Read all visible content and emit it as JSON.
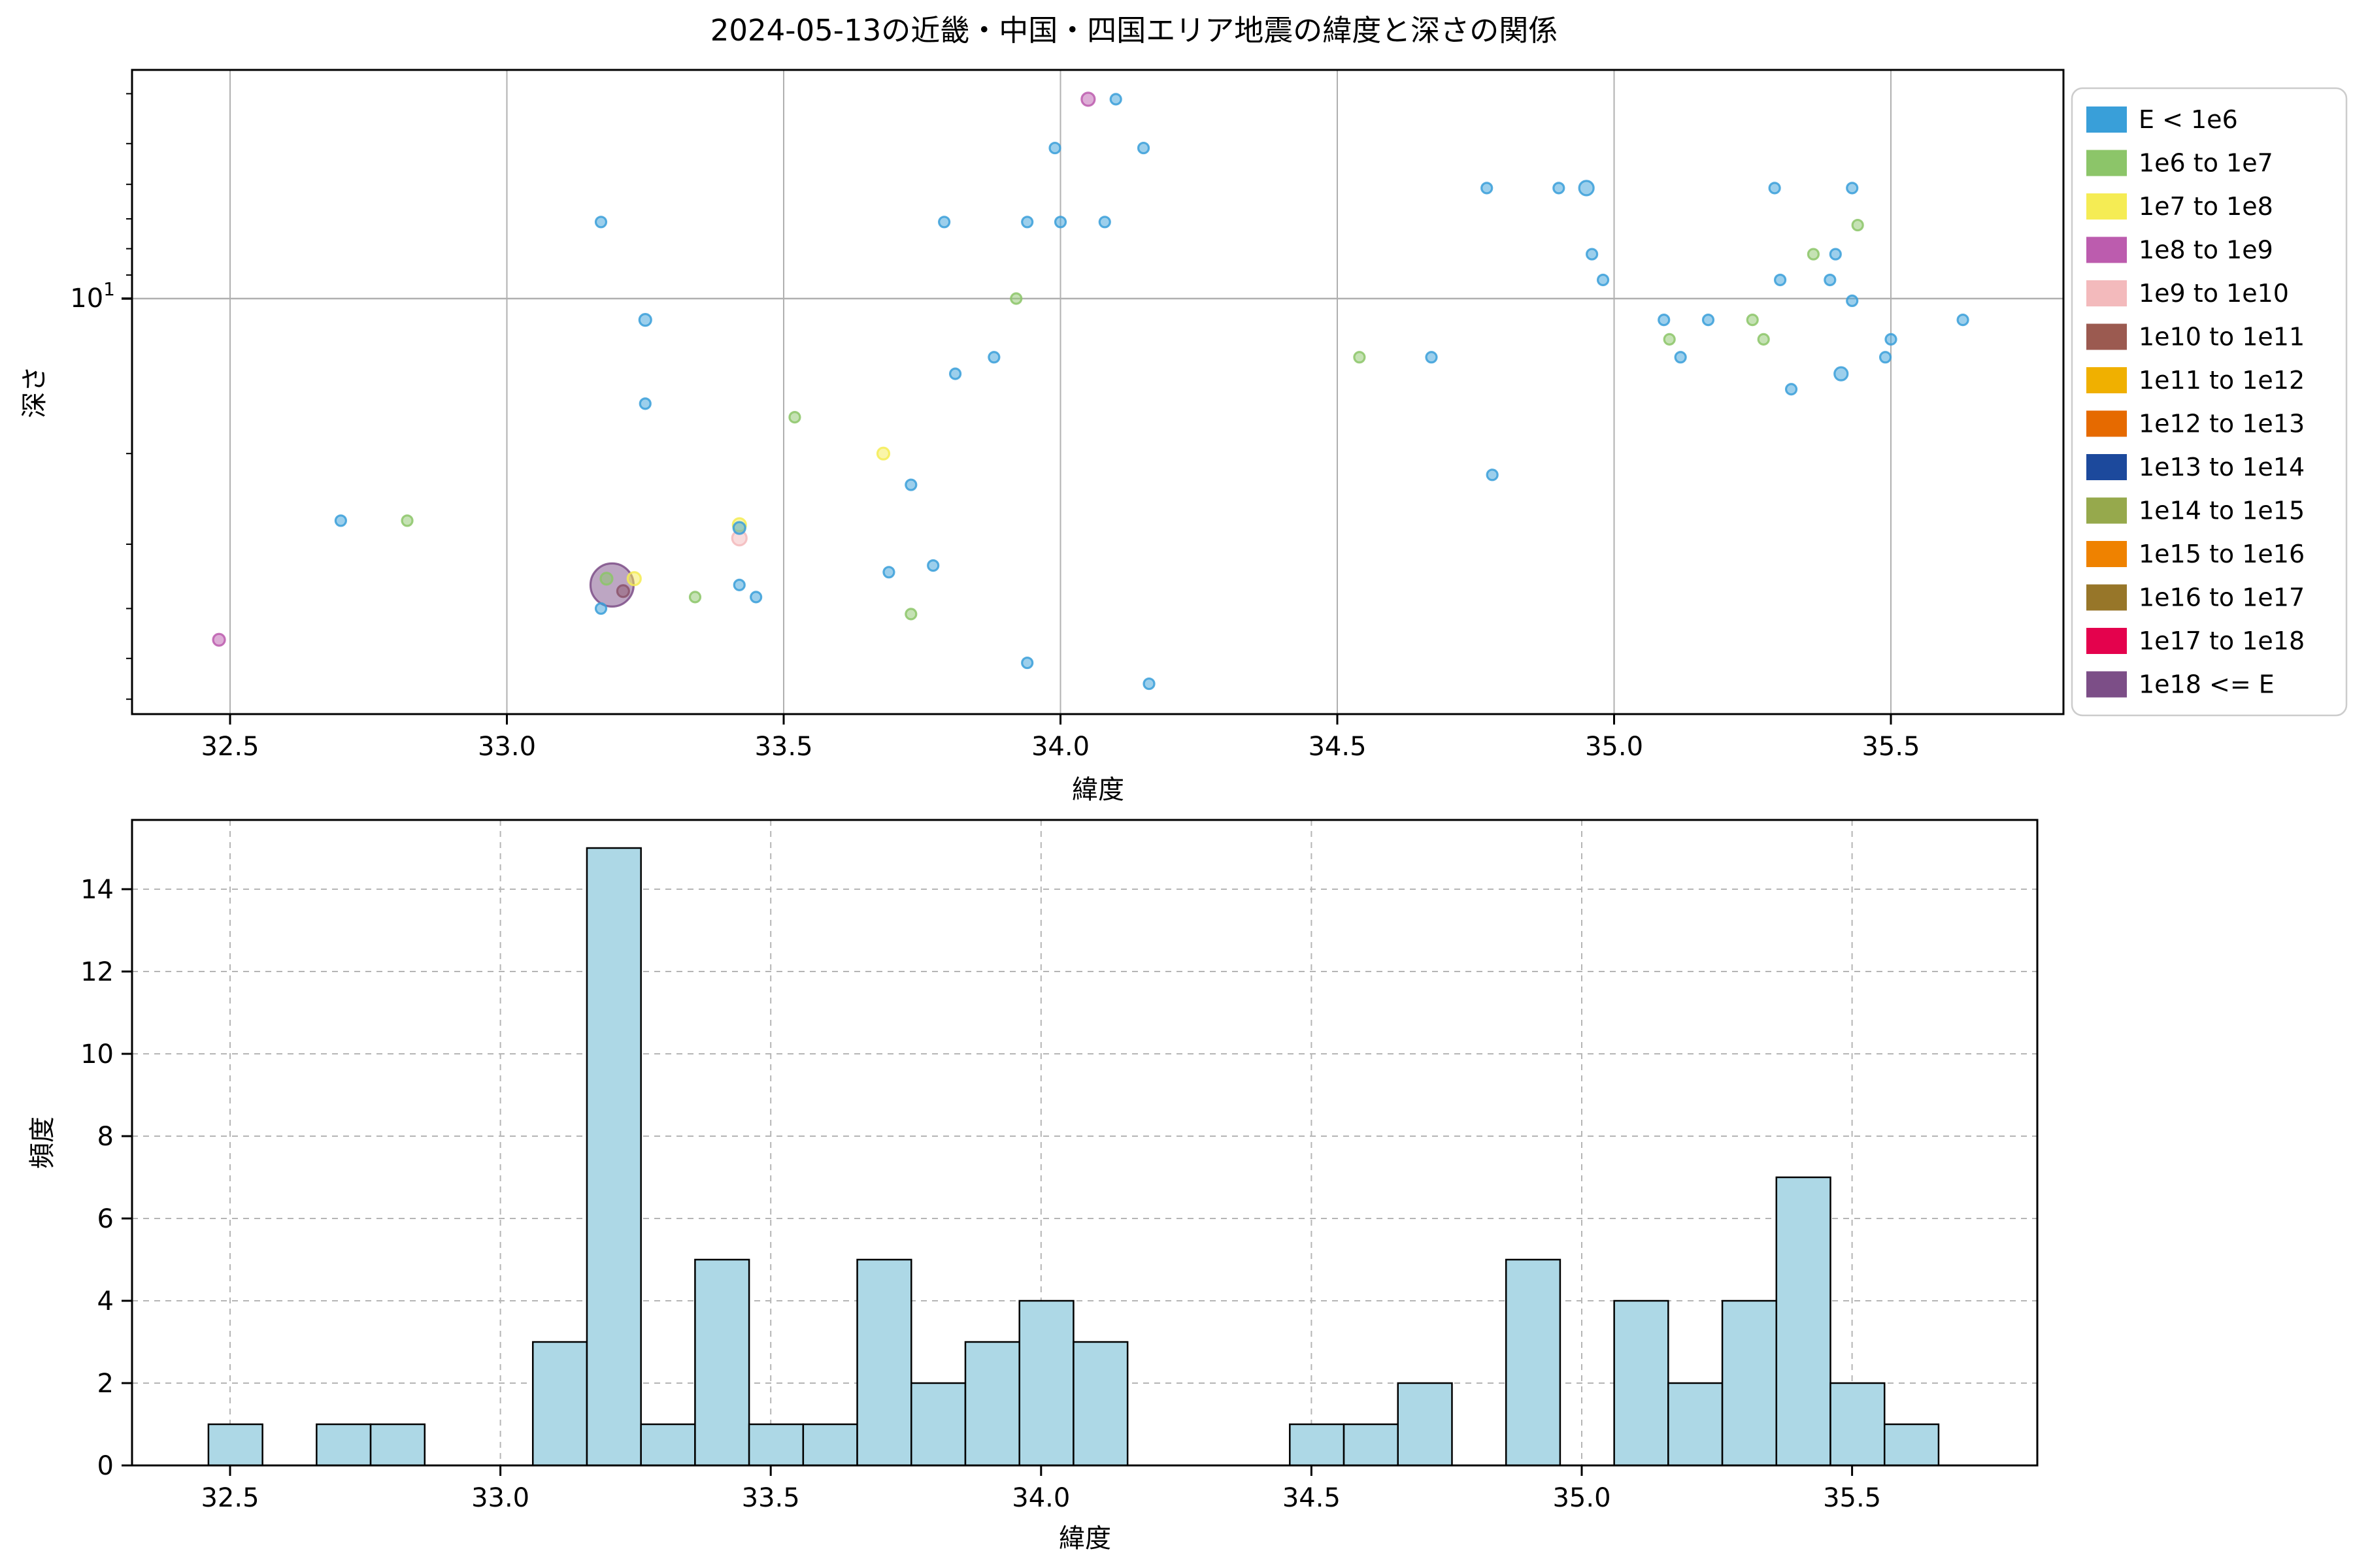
{
  "title": "2024-05-13の近畿・中国・四国エリア地震の緯度と深さの関係",
  "scatter": {
    "xlabel": "緯度",
    "ylabel": "深さ",
    "y_major_label": {
      "base": "10",
      "exp": "1"
    }
  },
  "histogram": {
    "xlabel": "緯度",
    "ylabel": "頻度"
  },
  "legend": {
    "items": [
      {
        "label": "E < 1e6",
        "color": "#399fd9"
      },
      {
        "label": "1e6 to 1e7",
        "color": "#8cc569"
      },
      {
        "label": "1e7 to 1e8",
        "color": "#f5ec54"
      },
      {
        "label": "1e8 to 1e9",
        "color": "#bc5cae"
      },
      {
        "label": "1e9 to 1e10",
        "color": "#f3babc"
      },
      {
        "label": "1e10 to 1e11",
        "color": "#9b5a50"
      },
      {
        "label": "1e11 to 1e12",
        "color": "#f0b000"
      },
      {
        "label": "1e12 to 1e13",
        "color": "#e66a00"
      },
      {
        "label": "1e13 to 1e14",
        "color": "#1c499c"
      },
      {
        "label": "1e14 to 1e15",
        "color": "#96a94c"
      },
      {
        "label": "1e15 to 1e16",
        "color": "#ef8200"
      },
      {
        "label": "1e16 to 1e17",
        "color": "#977629"
      },
      {
        "label": "1e17 to 1e18",
        "color": "#e4024d"
      },
      {
        "label": "1e18 <= E",
        "color": "#7c4e87"
      }
    ]
  },
  "chart_data": [
    {
      "type": "scatter",
      "title": "2024-05-13の近畿・中国・四国エリア地震の緯度と深さの関係",
      "xlabel": "緯度",
      "ylabel": "深さ",
      "xlim": [
        32.32,
        35.81
      ],
      "x_ticks": [
        32.5,
        33.0,
        33.5,
        34.0,
        34.5,
        35.0,
        35.5
      ],
      "y_scale": "log (inverted, depth increases downward)",
      "ylim_depth": [
        3.6,
        64
      ],
      "y_major_tick": 10,
      "y_minor_ticks": [
        4,
        5,
        6,
        7,
        8,
        9,
        20,
        30,
        40,
        50,
        60
      ],
      "grid": "solid gray at x ticks and at depth 10",
      "legend_position": "outside upper right",
      "size_note": "marker radius ~ event magnitude; one very large 1e18<=E event",
      "points": [
        {
          "lat": 33.21,
          "depth": 37.0,
          "cls": 5,
          "r": 9
        },
        {
          "lat": 33.19,
          "depth": 36.0,
          "cls": 13,
          "r": 33
        },
        {
          "lat": 33.18,
          "depth": 35.0,
          "cls": 1,
          "r": 9
        },
        {
          "lat": 33.23,
          "depth": 35.0,
          "cls": 2,
          "r": 10
        },
        {
          "lat": 33.17,
          "depth": 7.1,
          "cls": 0,
          "r": 8
        },
        {
          "lat": 33.25,
          "depth": 11.0,
          "cls": 0,
          "r": 9
        },
        {
          "lat": 33.25,
          "depth": 16.0,
          "cls": 0,
          "r": 8
        },
        {
          "lat": 33.17,
          "depth": 40.0,
          "cls": 0,
          "r": 8
        },
        {
          "lat": 32.48,
          "depth": 46.0,
          "cls": 3,
          "r": 9
        },
        {
          "lat": 32.7,
          "depth": 27.0,
          "cls": 0,
          "r": 8
        },
        {
          "lat": 32.82,
          "depth": 27.0,
          "cls": 1,
          "r": 8
        },
        {
          "lat": 33.34,
          "depth": 38.0,
          "cls": 1,
          "r": 8
        },
        {
          "lat": 33.42,
          "depth": 29.2,
          "cls": 4,
          "r": 11
        },
        {
          "lat": 33.42,
          "depth": 27.5,
          "cls": 2,
          "r": 10
        },
        {
          "lat": 33.42,
          "depth": 27.9,
          "cls": 0,
          "r": 9
        },
        {
          "lat": 33.45,
          "depth": 38.0,
          "cls": 0,
          "r": 8
        },
        {
          "lat": 33.42,
          "depth": 36.0,
          "cls": 0,
          "r": 8
        },
        {
          "lat": 33.52,
          "depth": 17.0,
          "cls": 1,
          "r": 8
        },
        {
          "lat": 33.68,
          "depth": 20.0,
          "cls": 2,
          "r": 9
        },
        {
          "lat": 33.73,
          "depth": 23.0,
          "cls": 0,
          "r": 8
        },
        {
          "lat": 33.69,
          "depth": 34.0,
          "cls": 0,
          "r": 8
        },
        {
          "lat": 33.77,
          "depth": 33.0,
          "cls": 0,
          "r": 8
        },
        {
          "lat": 33.73,
          "depth": 41.0,
          "cls": 1,
          "r": 8
        },
        {
          "lat": 33.81,
          "depth": 14.0,
          "cls": 0,
          "r": 8
        },
        {
          "lat": 33.88,
          "depth": 13.0,
          "cls": 0,
          "r": 8
        },
        {
          "lat": 33.92,
          "depth": 10.0,
          "cls": 1,
          "r": 8
        },
        {
          "lat": 33.79,
          "depth": 7.1,
          "cls": 0,
          "r": 8
        },
        {
          "lat": 33.94,
          "depth": 7.1,
          "cls": 0,
          "r": 8
        },
        {
          "lat": 34.0,
          "depth": 7.1,
          "cls": 0,
          "r": 8
        },
        {
          "lat": 34.08,
          "depth": 7.1,
          "cls": 0,
          "r": 8
        },
        {
          "lat": 33.99,
          "depth": 5.1,
          "cls": 0,
          "r": 8
        },
        {
          "lat": 34.15,
          "depth": 5.1,
          "cls": 0,
          "r": 8
        },
        {
          "lat": 34.05,
          "depth": 4.1,
          "cls": 3,
          "r": 10
        },
        {
          "lat": 34.1,
          "depth": 4.1,
          "cls": 0,
          "r": 8
        },
        {
          "lat": 33.94,
          "depth": 51.0,
          "cls": 0,
          "r": 8
        },
        {
          "lat": 34.16,
          "depth": 56.0,
          "cls": 0,
          "r": 8
        },
        {
          "lat": 34.54,
          "depth": 13.0,
          "cls": 1,
          "r": 8
        },
        {
          "lat": 34.67,
          "depth": 13.0,
          "cls": 0,
          "r": 8
        },
        {
          "lat": 34.77,
          "depth": 6.1,
          "cls": 0,
          "r": 8
        },
        {
          "lat": 34.78,
          "depth": 22.0,
          "cls": 0,
          "r": 8
        },
        {
          "lat": 34.9,
          "depth": 6.1,
          "cls": 0,
          "r": 8
        },
        {
          "lat": 34.95,
          "depth": 6.1,
          "cls": 0,
          "r": 11
        },
        {
          "lat": 34.96,
          "depth": 8.2,
          "cls": 0,
          "r": 8
        },
        {
          "lat": 34.98,
          "depth": 9.2,
          "cls": 0,
          "r": 8
        },
        {
          "lat": 35.09,
          "depth": 11.0,
          "cls": 0,
          "r": 8
        },
        {
          "lat": 35.1,
          "depth": 12.0,
          "cls": 1,
          "r": 8
        },
        {
          "lat": 35.12,
          "depth": 13.0,
          "cls": 0,
          "r": 8
        },
        {
          "lat": 35.17,
          "depth": 11.0,
          "cls": 0,
          "r": 8
        },
        {
          "lat": 35.25,
          "depth": 11.0,
          "cls": 1,
          "r": 8
        },
        {
          "lat": 35.27,
          "depth": 12.0,
          "cls": 1,
          "r": 8
        },
        {
          "lat": 35.29,
          "depth": 6.1,
          "cls": 0,
          "r": 8
        },
        {
          "lat": 35.43,
          "depth": 6.1,
          "cls": 0,
          "r": 8
        },
        {
          "lat": 35.44,
          "depth": 7.2,
          "cls": 1,
          "r": 8
        },
        {
          "lat": 35.36,
          "depth": 8.2,
          "cls": 1,
          "r": 8
        },
        {
          "lat": 35.4,
          "depth": 8.2,
          "cls": 0,
          "r": 8
        },
        {
          "lat": 35.3,
          "depth": 9.2,
          "cls": 0,
          "r": 8
        },
        {
          "lat": 35.39,
          "depth": 9.2,
          "cls": 0,
          "r": 8
        },
        {
          "lat": 35.43,
          "depth": 10.1,
          "cls": 0,
          "r": 8
        },
        {
          "lat": 35.41,
          "depth": 14.0,
          "cls": 0,
          "r": 10
        },
        {
          "lat": 35.32,
          "depth": 15.0,
          "cls": 0,
          "r": 8
        },
        {
          "lat": 35.5,
          "depth": 12.0,
          "cls": 0,
          "r": 8
        },
        {
          "lat": 35.49,
          "depth": 13.0,
          "cls": 0,
          "r": 8
        },
        {
          "lat": 35.63,
          "depth": 11.0,
          "cls": 0,
          "r": 8
        }
      ]
    },
    {
      "type": "bar",
      "subtype": "histogram",
      "xlabel": "緯度",
      "ylabel": "頻度",
      "x_ticks": [
        32.5,
        33.0,
        33.5,
        34.0,
        34.5,
        35.0,
        35.5
      ],
      "y_ticks": [
        0,
        2,
        4,
        6,
        8,
        10,
        12,
        14
      ],
      "ylim": [
        0,
        15.7
      ],
      "grid": "dashed gray both axes",
      "bar_fill": "#add8e6",
      "bar_edge": "#000000",
      "bin_width": 0.1,
      "total_count": 75,
      "bars": [
        {
          "left": 32.46,
          "count": 1
        },
        {
          "left": 32.66,
          "count": 1
        },
        {
          "left": 32.76,
          "count": 1
        },
        {
          "left": 33.06,
          "count": 3
        },
        {
          "left": 33.16,
          "count": 15
        },
        {
          "left": 33.26,
          "count": 1
        },
        {
          "left": 33.36,
          "count": 5
        },
        {
          "left": 33.46,
          "count": 1
        },
        {
          "left": 33.56,
          "count": 1
        },
        {
          "left": 33.66,
          "count": 5
        },
        {
          "left": 33.76,
          "count": 2
        },
        {
          "left": 33.86,
          "count": 3
        },
        {
          "left": 33.96,
          "count": 4
        },
        {
          "left": 34.06,
          "count": 3
        },
        {
          "left": 34.46,
          "count": 1
        },
        {
          "left": 34.56,
          "count": 1
        },
        {
          "left": 34.66,
          "count": 2
        },
        {
          "left": 34.86,
          "count": 5
        },
        {
          "left": 35.06,
          "count": 4
        },
        {
          "left": 35.16,
          "count": 2
        },
        {
          "left": 35.26,
          "count": 4
        },
        {
          "left": 35.36,
          "count": 7
        },
        {
          "left": 35.46,
          "count": 2
        },
        {
          "left": 35.56,
          "count": 1
        }
      ]
    }
  ]
}
